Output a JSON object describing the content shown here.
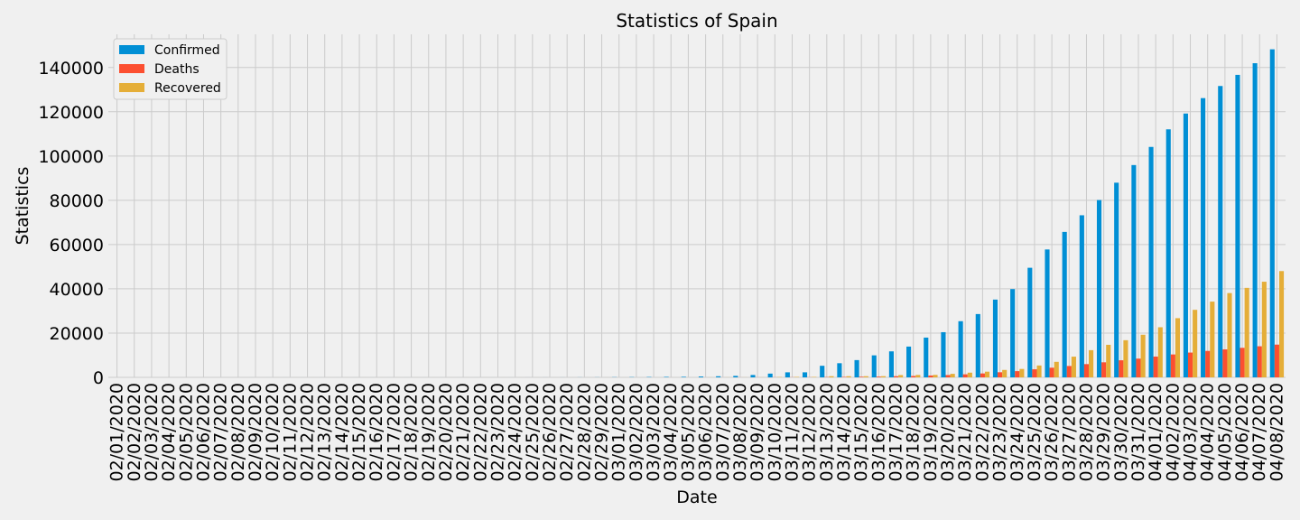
{
  "chart_data": {
    "type": "bar",
    "title": "Statistics of Spain",
    "xlabel": "Date",
    "ylabel": "Statistics",
    "ylim": [
      0,
      155000
    ],
    "yticks": [
      0,
      20000,
      40000,
      60000,
      80000,
      100000,
      120000,
      140000
    ],
    "grid": true,
    "legend": "top-left",
    "categories": [
      "02/01/2020",
      "02/02/2020",
      "02/03/2020",
      "02/04/2020",
      "02/05/2020",
      "02/06/2020",
      "02/07/2020",
      "02/08/2020",
      "02/09/2020",
      "02/10/2020",
      "02/11/2020",
      "02/12/2020",
      "02/13/2020",
      "02/14/2020",
      "02/15/2020",
      "02/16/2020",
      "02/17/2020",
      "02/18/2020",
      "02/19/2020",
      "02/20/2020",
      "02/21/2020",
      "02/22/2020",
      "02/23/2020",
      "02/24/2020",
      "02/25/2020",
      "02/26/2020",
      "02/27/2020",
      "02/28/2020",
      "02/29/2020",
      "03/01/2020",
      "03/02/2020",
      "03/03/2020",
      "03/04/2020",
      "03/05/2020",
      "03/06/2020",
      "03/07/2020",
      "03/08/2020",
      "03/09/2020",
      "03/10/2020",
      "03/11/2020",
      "03/12/2020",
      "03/13/2020",
      "03/14/2020",
      "03/15/2020",
      "03/16/2020",
      "03/17/2020",
      "03/18/2020",
      "03/19/2020",
      "03/20/2020",
      "03/21/2020",
      "03/22/2020",
      "03/23/2020",
      "03/24/2020",
      "03/25/2020",
      "03/26/2020",
      "03/27/2020",
      "03/28/2020",
      "03/29/2020",
      "03/30/2020",
      "03/31/2020",
      "04/01/2020",
      "04/02/2020",
      "04/03/2020",
      "04/04/2020",
      "04/05/2020",
      "04/06/2020",
      "04/07/2020",
      "04/08/2020"
    ],
    "series": [
      {
        "name": "Confirmed",
        "color": "#008fd5",
        "values": [
          0,
          0,
          1,
          1,
          1,
          1,
          1,
          1,
          2,
          2,
          2,
          2,
          2,
          2,
          2,
          2,
          2,
          2,
          2,
          2,
          2,
          2,
          2,
          2,
          6,
          13,
          15,
          32,
          45,
          84,
          120,
          165,
          222,
          259,
          400,
          500,
          673,
          1073,
          1695,
          2277,
          2277,
          5232,
          6391,
          7798,
          9942,
          11748,
          13910,
          17963,
          20410,
          25374,
          28603,
          35136,
          39885,
          49515,
          57786,
          65719,
          73235,
          80110,
          87956,
          95923,
          104118,
          112065,
          119199,
          126168,
          131646,
          136675,
          141942,
          148220
        ]
      },
      {
        "name": "Deaths",
        "color": "#fc4f30",
        "values": [
          0,
          0,
          0,
          0,
          0,
          0,
          0,
          0,
          0,
          0,
          0,
          0,
          0,
          0,
          0,
          0,
          0,
          0,
          0,
          0,
          0,
          0,
          0,
          0,
          0,
          0,
          0,
          0,
          0,
          0,
          0,
          1,
          2,
          3,
          5,
          10,
          17,
          28,
          35,
          54,
          55,
          133,
          195,
          289,
          342,
          533,
          623,
          830,
          1043,
          1375,
          1772,
          2311,
          2808,
          3647,
          4365,
          5138,
          5982,
          6803,
          7716,
          8464,
          9387,
          10348,
          11198,
          11947,
          12641,
          13341,
          14045,
          14792
        ]
      },
      {
        "name": "Recovered",
        "color": "#e5ae38",
        "values": [
          0,
          0,
          0,
          0,
          0,
          0,
          0,
          0,
          0,
          2,
          2,
          2,
          2,
          2,
          2,
          2,
          2,
          2,
          2,
          2,
          2,
          2,
          2,
          2,
          2,
          2,
          2,
          2,
          2,
          2,
          2,
          2,
          2,
          2,
          30,
          30,
          32,
          32,
          135,
          193,
          193,
          517,
          517,
          517,
          530,
          1028,
          1081,
          1107,
          1588,
          2125,
          2575,
          3355,
          3794,
          5367,
          7015,
          9357,
          12285,
          14709,
          16780,
          19259,
          22647,
          26743,
          30513,
          34219,
          38080,
          40437,
          43208,
          48021
        ]
      }
    ]
  }
}
